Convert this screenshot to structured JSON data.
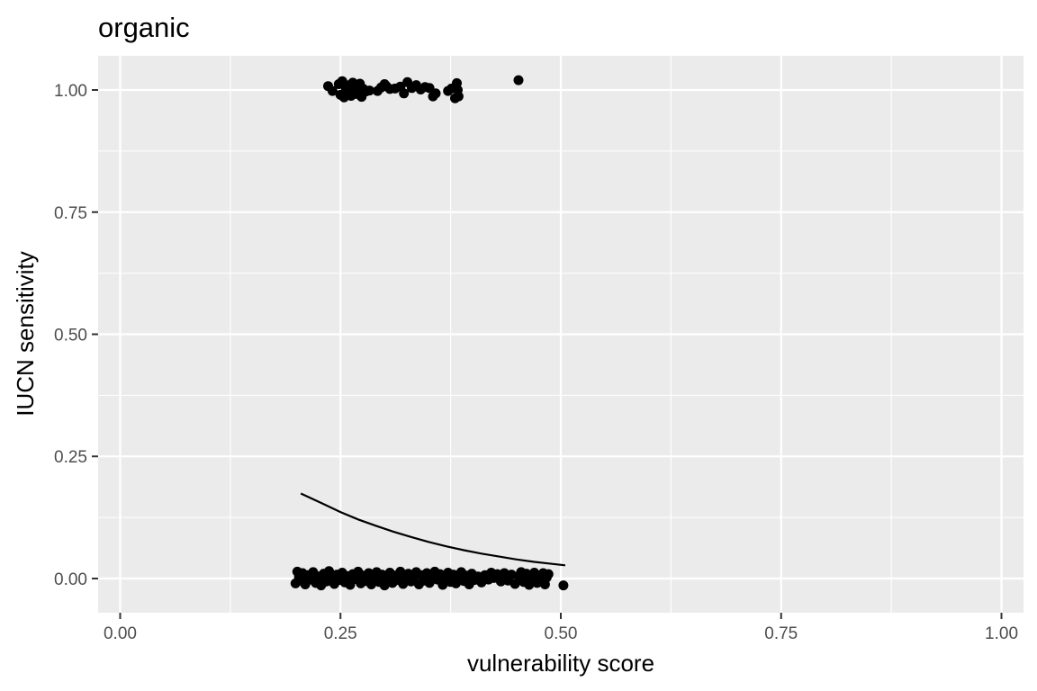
{
  "chart_data": {
    "type": "scatter",
    "title": "organic",
    "xlabel": "vulnerability score",
    "ylabel": "IUCN sensitivity",
    "xlim": [
      -0.025,
      1.025
    ],
    "ylim": [
      -0.07,
      1.07
    ],
    "x_ticks": [
      {
        "value": 0.0,
        "label": "0.00"
      },
      {
        "value": 0.25,
        "label": "0.25"
      },
      {
        "value": 0.5,
        "label": "0.50"
      },
      {
        "value": 0.75,
        "label": "0.75"
      },
      {
        "value": 1.0,
        "label": "1.00"
      }
    ],
    "y_ticks": [
      {
        "value": 0.0,
        "label": "0.00"
      },
      {
        "value": 0.25,
        "label": "0.25"
      },
      {
        "value": 0.5,
        "label": "0.50"
      },
      {
        "value": 0.75,
        "label": "0.75"
      },
      {
        "value": 1.0,
        "label": "1.00"
      }
    ],
    "grid": true,
    "colors": {
      "panel": "#ebebeb",
      "grid": "#ffffff",
      "points": "#000000",
      "fit": "#000000"
    },
    "series": [
      {
        "kind": "points",
        "points": [
          [
            0.236,
            1.008
          ],
          [
            0.241,
            0.998
          ],
          [
            0.248,
            1.012
          ],
          [
            0.25,
            0.99
          ],
          [
            0.252,
            1.018
          ],
          [
            0.254,
            0.985
          ],
          [
            0.256,
            1.004
          ],
          [
            0.258,
            0.995
          ],
          [
            0.26,
            1.01
          ],
          [
            0.262,
            0.988
          ],
          [
            0.264,
            1.015
          ],
          [
            0.266,
            1.0
          ],
          [
            0.268,
            0.992
          ],
          [
            0.27,
            1.006
          ],
          [
            0.272,
            1.013
          ],
          [
            0.274,
            0.986
          ],
          [
            0.276,
            1.002
          ],
          [
            0.279,
            0.997
          ],
          [
            0.283,
            0.999
          ],
          [
            0.292,
            0.998
          ],
          [
            0.296,
            1.005
          ],
          [
            0.3,
            1.012
          ],
          [
            0.302,
            1.008
          ],
          [
            0.306,
            1.002
          ],
          [
            0.312,
            1.003
          ],
          [
            0.318,
            1.007
          ],
          [
            0.322,
            0.993
          ],
          [
            0.326,
            1.016
          ],
          [
            0.331,
            1.004
          ],
          [
            0.336,
            1.01
          ],
          [
            0.341,
            1.001
          ],
          [
            0.346,
            1.006
          ],
          [
            0.351,
            1.004
          ],
          [
            0.355,
            0.987
          ],
          [
            0.358,
            0.993
          ],
          [
            0.372,
            0.998
          ],
          [
            0.376,
            1.003
          ],
          [
            0.38,
            0.983
          ],
          [
            0.382,
            1.014
          ],
          [
            0.383,
            1.0
          ],
          [
            0.384,
            0.987
          ],
          [
            0.452,
            1.02
          ],
          [
            0.199,
            -0.01
          ],
          [
            0.201,
            0.014
          ],
          [
            0.203,
            0.003
          ],
          [
            0.205,
            -0.004
          ],
          [
            0.207,
            0.011
          ],
          [
            0.21,
            -0.012
          ],
          [
            0.213,
            0.007
          ],
          [
            0.216,
            -0.002
          ],
          [
            0.219,
            0.013
          ],
          [
            0.222,
            -0.009
          ],
          [
            0.225,
            0.004
          ],
          [
            0.228,
            -0.014
          ],
          [
            0.231,
            0.01
          ],
          [
            0.234,
            -0.006
          ],
          [
            0.237,
            0.015
          ],
          [
            0.24,
            0.001
          ],
          [
            0.243,
            -0.011
          ],
          [
            0.246,
            0.008
          ],
          [
            0.249,
            -0.003
          ],
          [
            0.252,
            0.012
          ],
          [
            0.255,
            -0.008
          ],
          [
            0.258,
            0.005
          ],
          [
            0.261,
            -0.013
          ],
          [
            0.264,
            0.009
          ],
          [
            0.267,
            -0.001
          ],
          [
            0.27,
            0.014
          ],
          [
            0.273,
            -0.01
          ],
          [
            0.276,
            0.006
          ],
          [
            0.279,
            -0.005
          ],
          [
            0.282,
            0.011
          ],
          [
            0.285,
            -0.012
          ],
          [
            0.288,
            0.003
          ],
          [
            0.291,
            0.013
          ],
          [
            0.294,
            -0.007
          ],
          [
            0.297,
            0.008
          ],
          [
            0.3,
            -0.014
          ],
          [
            0.303,
            0.002
          ],
          [
            0.306,
            0.012
          ],
          [
            0.309,
            -0.009
          ],
          [
            0.312,
            0.006
          ],
          [
            0.315,
            -0.003
          ],
          [
            0.318,
            0.014
          ],
          [
            0.321,
            -0.011
          ],
          [
            0.324,
            0.004
          ],
          [
            0.327,
            0.01
          ],
          [
            0.33,
            -0.006
          ],
          [
            0.333,
            0.001
          ],
          [
            0.336,
            0.013
          ],
          [
            0.339,
            -0.012
          ],
          [
            0.342,
            0.007
          ],
          [
            0.345,
            -0.004
          ],
          [
            0.348,
            0.011
          ],
          [
            0.351,
            -0.009
          ],
          [
            0.354,
            0.005
          ],
          [
            0.357,
            0.014
          ],
          [
            0.36,
            -0.002
          ],
          [
            0.363,
            0.009
          ],
          [
            0.366,
            -0.013
          ],
          [
            0.369,
            0.003
          ],
          [
            0.372,
            0.012
          ],
          [
            0.375,
            -0.007
          ],
          [
            0.378,
            0.008
          ],
          [
            0.381,
            -0.01
          ],
          [
            0.384,
            0.002
          ],
          [
            0.387,
            0.013
          ],
          [
            0.39,
            -0.005
          ],
          [
            0.393,
            0.006
          ],
          [
            0.396,
            -0.012
          ],
          [
            0.399,
            0.01
          ],
          [
            0.402,
            -0.003
          ],
          [
            0.406,
            0.004
          ],
          [
            0.41,
            -0.008
          ],
          [
            0.414,
            0.007
          ],
          [
            0.418,
            -0.002
          ],
          [
            0.421,
            0.012
          ],
          [
            0.424,
            0.001
          ],
          [
            0.428,
            0.009
          ],
          [
            0.432,
            -0.006
          ],
          [
            0.436,
            0.011
          ],
          [
            0.44,
            -0.004
          ],
          [
            0.444,
            0.008
          ],
          [
            0.448,
            -0.011
          ],
          [
            0.452,
            0.005
          ],
          [
            0.455,
            0.013
          ],
          [
            0.458,
            -0.007
          ],
          [
            0.461,
            0.01
          ],
          [
            0.464,
            -0.013
          ],
          [
            0.467,
            0.003
          ],
          [
            0.47,
            0.012
          ],
          [
            0.473,
            -0.009
          ],
          [
            0.476,
            0.006
          ],
          [
            0.478,
            -0.004
          ],
          [
            0.48,
            0.011
          ],
          [
            0.482,
            -0.012
          ],
          [
            0.484,
            0.002
          ],
          [
            0.486,
            0.009
          ],
          [
            0.503,
            -0.014
          ]
        ]
      },
      {
        "kind": "line",
        "x": [
          0.205,
          0.23,
          0.25,
          0.27,
          0.29,
          0.31,
          0.33,
          0.35,
          0.37,
          0.39,
          0.41,
          0.43,
          0.45,
          0.47,
          0.49,
          0.505
        ],
        "y": [
          0.174,
          0.153,
          0.136,
          0.121,
          0.108,
          0.096,
          0.085,
          0.075,
          0.066,
          0.058,
          0.051,
          0.045,
          0.039,
          0.034,
          0.03,
          0.027
        ]
      }
    ]
  }
}
